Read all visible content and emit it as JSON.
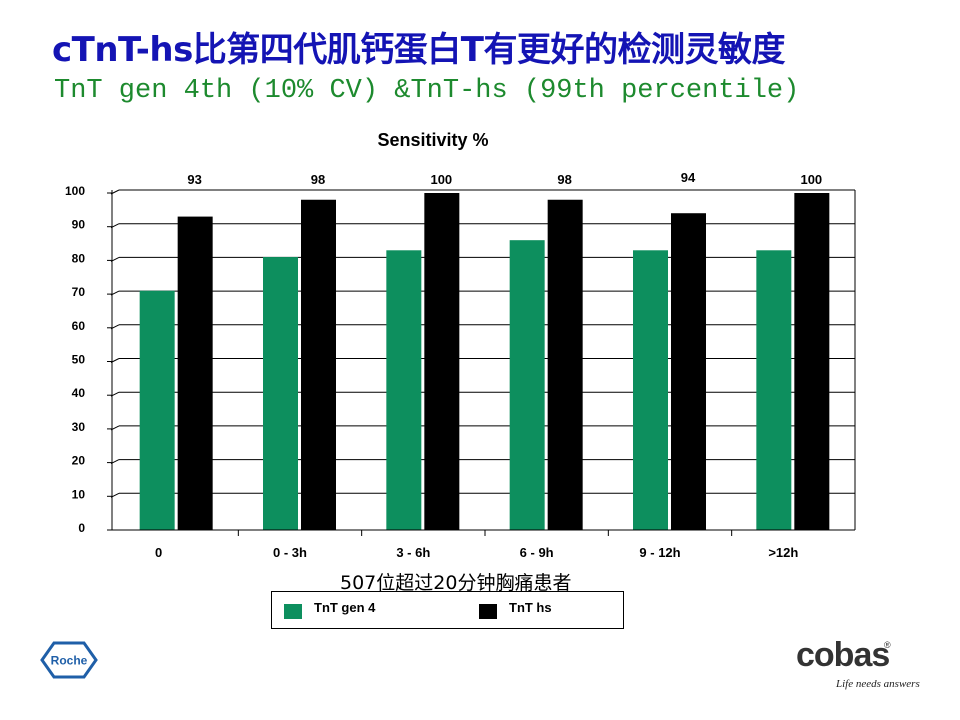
{
  "slide": {
    "title": "cTnT-hs比第四代肌钙蛋白T有更好的检测灵敏度",
    "subtitle": "TnT gen 4th (10% CV) &TnT-hs (99th percentile)",
    "caption": "507位超过20分钟胸痛患者"
  },
  "chart_data": {
    "type": "bar",
    "title": "Sensitivity %",
    "xlabel": "",
    "ylabel": "",
    "categories": [
      "0",
      "0 - 3h",
      "3 - 6h",
      "6 - 9h",
      "9 - 12h",
      ">12h"
    ],
    "series": [
      {
        "name": "TnT gen 4",
        "color": "#0d8f5e",
        "values": [
          71,
          81,
          83,
          86,
          83,
          83
        ]
      },
      {
        "name": "TnT hs",
        "color": "#000000",
        "values": [
          93,
          98,
          100,
          98,
          94,
          100
        ]
      }
    ],
    "data_labels": [
      "93",
      "98",
      "100",
      "98",
      "94",
      "100"
    ],
    "yticks": [
      "0",
      "10",
      "20",
      "30",
      "40",
      "50",
      "60",
      "70",
      "80",
      "90",
      "100"
    ],
    "ylim": [
      0,
      100
    ],
    "grid": true,
    "legend_position": "bottom"
  },
  "logos": {
    "roche": "Roche",
    "cobas": "cobas",
    "cobas_tagline": "Life needs answers"
  }
}
